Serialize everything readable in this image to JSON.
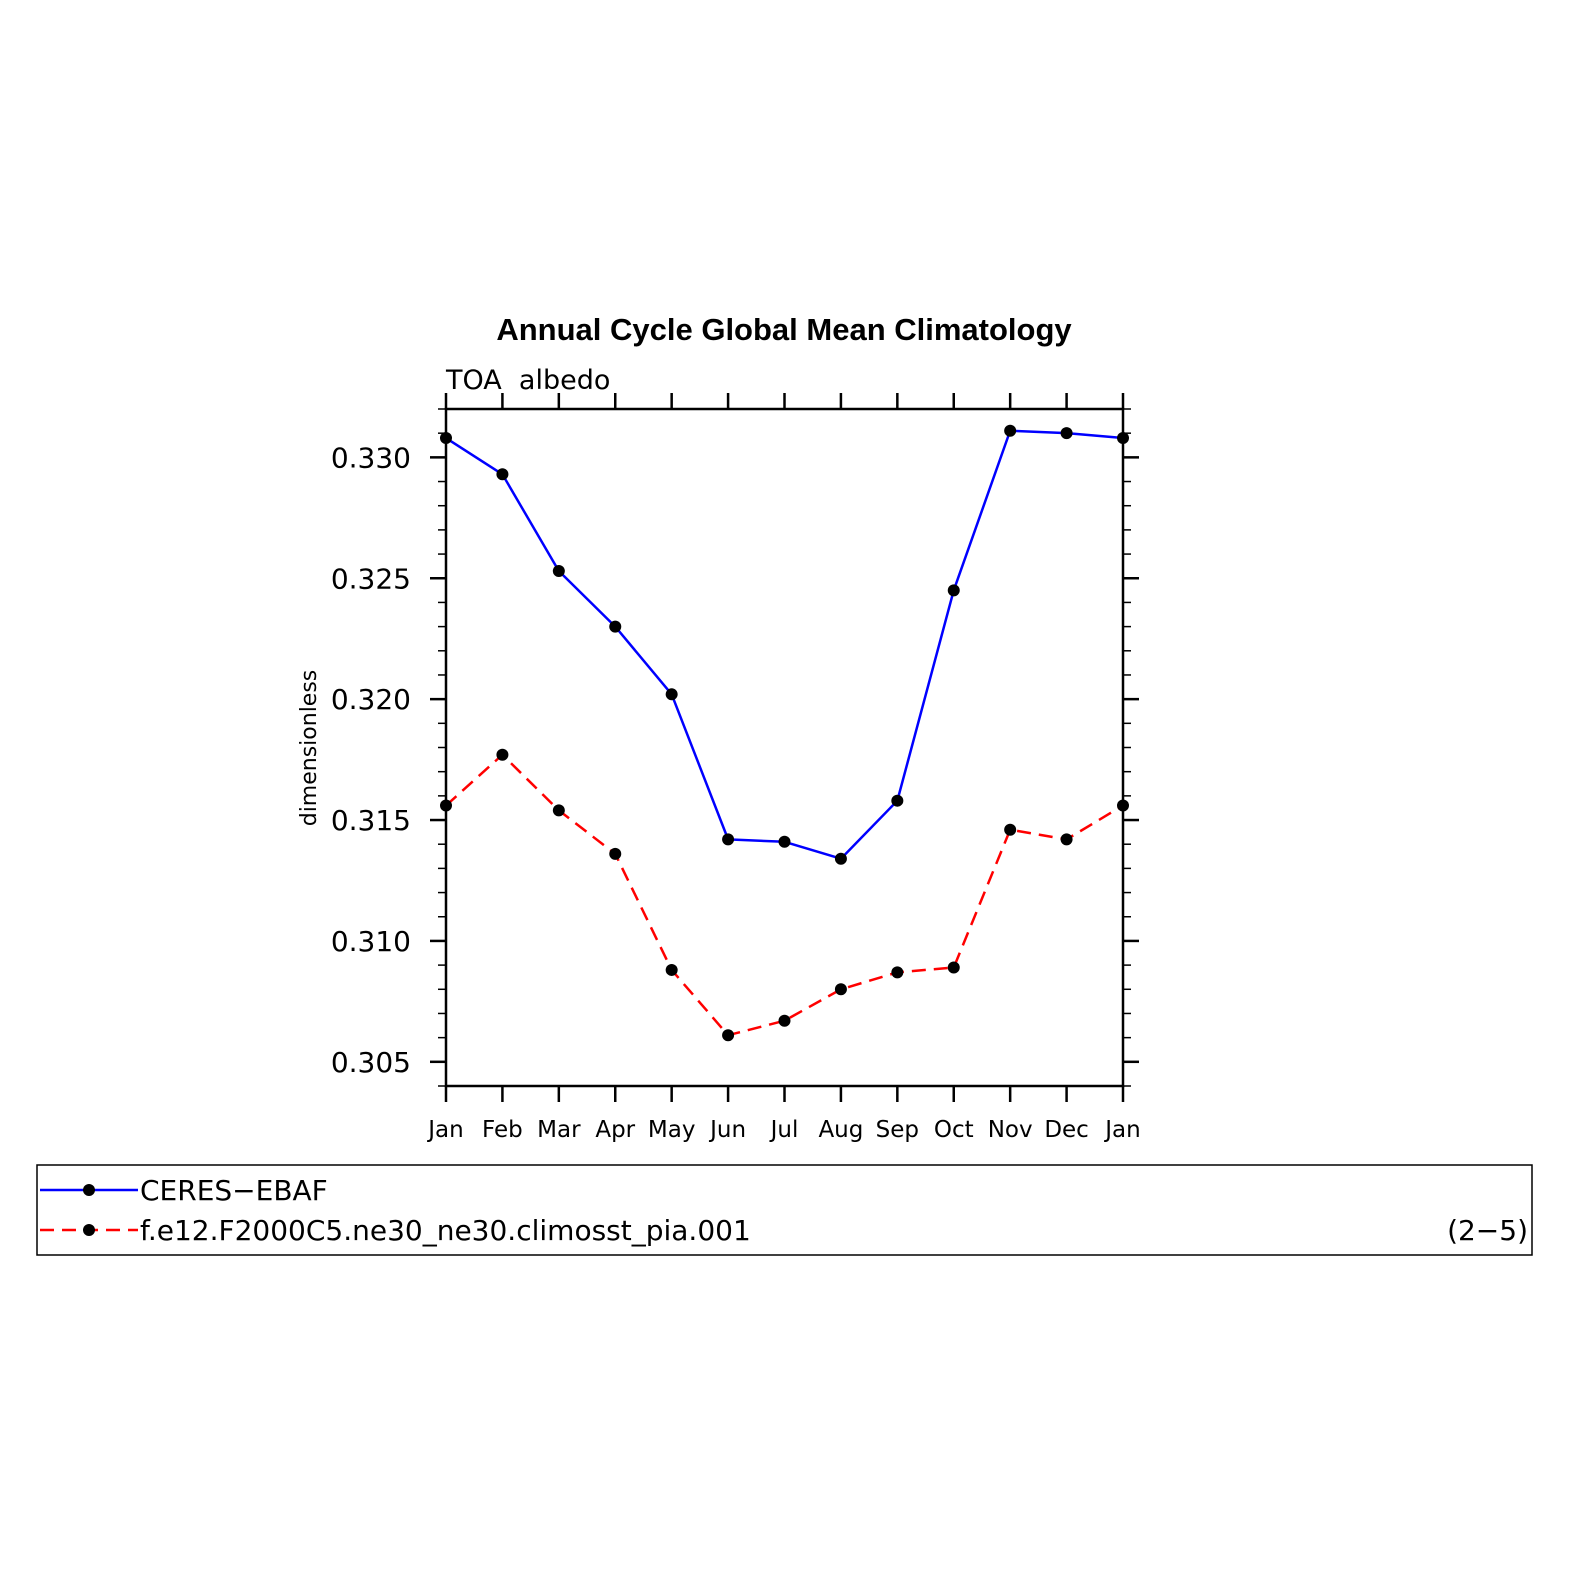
{
  "chart_data": {
    "type": "line",
    "title": "Annual Cycle Global Mean Climatology",
    "subtitle": "TOA  albedo",
    "ylabel": "dimensionless",
    "xlabel": "",
    "categories": [
      "Jan",
      "Feb",
      "Mar",
      "Apr",
      "May",
      "Jun",
      "Jul",
      "Aug",
      "Sep",
      "Oct",
      "Nov",
      "Dec",
      "Jan"
    ],
    "ylim": [
      0.304,
      0.332
    ],
    "yticks": [
      0.305,
      0.31,
      0.315,
      0.32,
      0.325,
      0.33
    ],
    "ytick_labels": [
      "0.305",
      "0.310",
      "0.315",
      "0.320",
      "0.325",
      "0.330"
    ],
    "series": [
      {
        "name": "CERES−EBAF",
        "color": "#0000ff",
        "dash": "solid",
        "values": [
          0.3308,
          0.3293,
          0.3253,
          0.323,
          0.3202,
          0.3142,
          0.3141,
          0.3134,
          0.3158,
          0.3245,
          0.3311,
          0.331,
          0.3308
        ]
      },
      {
        "name": "f.e12.F2000C5.ne30_ne30.climosst_pia.001",
        "color": "#ff0000",
        "dash": "dashed",
        "values": [
          0.3156,
          0.3177,
          0.3154,
          0.3136,
          0.3088,
          0.3061,
          0.3067,
          0.308,
          0.3087,
          0.3089,
          0.3146,
          0.3142,
          0.3156
        ]
      }
    ],
    "legend": {
      "placement": "bottom",
      "note": "(2−5)"
    },
    "grid": false
  }
}
